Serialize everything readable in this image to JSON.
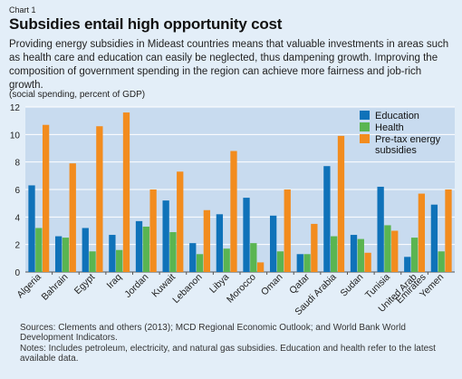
{
  "header": {
    "chart_label": "Chart 1",
    "title": "Subsidies entail high opportunity cost",
    "subtitle": "Providing energy subsidies in Mideast countries means that valuable investments in areas such as health care and education can easily be neglected, thus dampening growth. Improving the composition of government spending in the region can achieve more fairness and job-rich growth.",
    "units": "(social spending, percent of GDP)"
  },
  "footer": {
    "sources": "Sources: Clements and others (2013); MCD Regional Economic Outlook; and World Bank World Development Indicators.",
    "notes": "Notes: Includes petroleum, electricity, and natural gas subsidies. Education and health refer to the latest available data."
  },
  "colors": {
    "panel": "#e3eef8",
    "plot_bg": "#c8dbef",
    "education": "#0f72b9",
    "health": "#5ab551",
    "subsidies": "#f28c1e"
  },
  "chart_data": {
    "type": "bar",
    "categories": [
      "Algeria",
      "Bahrain",
      "Egypt",
      "Iraq",
      "Jordan",
      "Kuwait",
      "Lebanon",
      "Libya",
      "Morocco",
      "Oman",
      "Qatar",
      "Saudi Arabia",
      "Sudan",
      "Tunisia",
      "United Arab Emirates",
      "Yemen"
    ],
    "series": [
      {
        "name": "Education",
        "color": "#0f72b9",
        "values": [
          6.3,
          2.6,
          3.2,
          2.7,
          3.7,
          5.2,
          2.1,
          4.2,
          5.4,
          4.1,
          1.3,
          7.7,
          2.7,
          6.2,
          1.1,
          4.9
        ]
      },
      {
        "name": "Health",
        "color": "#5ab551",
        "values": [
          3.2,
          2.5,
          1.5,
          1.6,
          3.3,
          2.9,
          1.3,
          1.7,
          2.1,
          1.5,
          1.3,
          2.6,
          2.4,
          3.4,
          2.5,
          1.5
        ]
      },
      {
        "name": "Pre-tax energy subsidies",
        "color": "#f28c1e",
        "values": [
          10.7,
          7.9,
          10.6,
          11.6,
          6.0,
          7.3,
          4.5,
          8.8,
          0.7,
          6.0,
          3.5,
          9.9,
          1.4,
          3.0,
          5.7,
          6.0
        ]
      }
    ],
    "ylim": [
      0,
      12
    ],
    "yticks": [
      0,
      2,
      4,
      6,
      8,
      10,
      12
    ],
    "xlabel": "",
    "ylabel": "",
    "grid": true,
    "legend": "top-right"
  }
}
